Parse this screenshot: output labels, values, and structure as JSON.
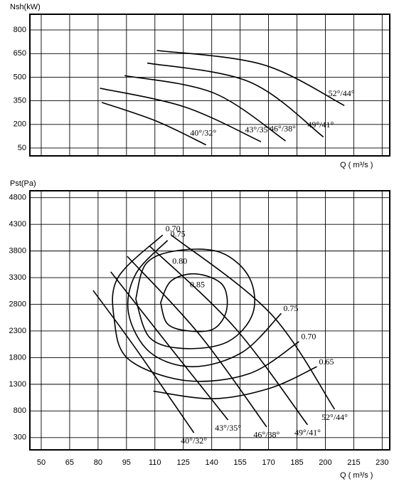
{
  "chart_data": [
    {
      "type": "line",
      "y_label": "Nsh(kW)",
      "x_label": "Q ( m³/s )",
      "xlim": [
        44,
        234
      ],
      "ylim": [
        0,
        900
      ],
      "xticks": [
        50,
        65,
        80,
        95,
        110,
        125,
        140,
        155,
        170,
        185,
        200,
        215,
        230
      ],
      "yticks": [
        50,
        200,
        350,
        500,
        650,
        800
      ],
      "grid": true,
      "series": [
        {
          "name": "40°/32°",
          "x": [
            82,
            111,
            137
          ],
          "values": [
            340,
            220,
            70
          ]
        },
        {
          "name": "43°/35°",
          "x": [
            81,
            126,
            166
          ],
          "values": [
            430,
            310,
            90
          ]
        },
        {
          "name": "46°/38°",
          "x": [
            94,
            141,
            179
          ],
          "values": [
            510,
            400,
            95
          ]
        },
        {
          "name": "49°/41°",
          "x": [
            106,
            160,
            199
          ],
          "values": [
            590,
            470,
            120
          ]
        },
        {
          "name": "52°/44°",
          "x": [
            111,
            167,
            210
          ],
          "values": [
            670,
            580,
            320
          ]
        }
      ]
    },
    {
      "type": "line",
      "y_label": "Pst(Pa)",
      "x_label": "Q ( m³/s )",
      "xlim": [
        44,
        234
      ],
      "ylim": [
        70,
        4930
      ],
      "xticks": [
        50,
        65,
        80,
        95,
        110,
        125,
        140,
        155,
        170,
        185,
        200,
        215,
        230
      ],
      "yticks": [
        300,
        800,
        1300,
        1800,
        2300,
        2800,
        3300,
        3800,
        4300,
        4800
      ],
      "grid": true,
      "series": [
        {
          "name": "40°/32°",
          "x": [
            77.4,
            99.9,
            130.6
          ],
          "values": [
            3060,
            1970,
            390
          ]
        },
        {
          "name": "43°/35°",
          "x": [
            86.7,
            118.6,
            148.6
          ],
          "values": [
            3410,
            1970,
            630
          ]
        },
        {
          "name": "46°/38°",
          "x": [
            95.4,
            133.6,
            169
          ],
          "values": [
            3700,
            2230,
            500
          ]
        },
        {
          "name": "49°/41°",
          "x": [
            107,
            152,
            190.6
          ],
          "values": [
            3900,
            2370,
            540
          ]
        },
        {
          "name": "52°/44°",
          "x": [
            118.6,
            171,
            204.9
          ],
          "values": [
            4100,
            2630,
            830
          ]
        }
      ],
      "contours": [
        {
          "name": "0.85",
          "x": [
            113,
            118.6,
            131.7,
            145.6,
            147.9,
            141.1,
            128,
            116.7,
            113
          ],
          "values": [
            2830,
            3240,
            3370,
            3170,
            2700,
            2340,
            2300,
            2430,
            2830
          ]
        },
        {
          "name": "0.80",
          "x": [
            99.9,
            105.5,
            122.4,
            144.9,
            159.9,
            161.7,
            148.6,
            126.1,
            107.4,
            99.9
          ],
          "values": [
            2900,
            3570,
            3810,
            3770,
            3300,
            2630,
            2100,
            1970,
            2170,
            2900
          ]
        },
        {
          "name": "0.75",
          "x": [
            116.7,
            99.9,
            96.1,
            107.4,
            129.9,
            156.1,
            176.7
          ],
          "values": [
            4000,
            3370,
            2630,
            1900,
            1630,
            1900,
            2630
          ]
        },
        {
          "name": "0.70",
          "x": [
            114.1,
            90.5,
            88.6,
            96.1,
            126.1,
            159.9,
            186.1
          ],
          "values": [
            4100,
            3300,
            2500,
            1770,
            1370,
            1500,
            2100
          ]
        },
        {
          "name": "0.65",
          "x": [
            109.2,
            141.1,
            171.1,
            195.5
          ],
          "values": [
            1170,
            1030,
            1230,
            1630
          ]
        }
      ]
    }
  ]
}
